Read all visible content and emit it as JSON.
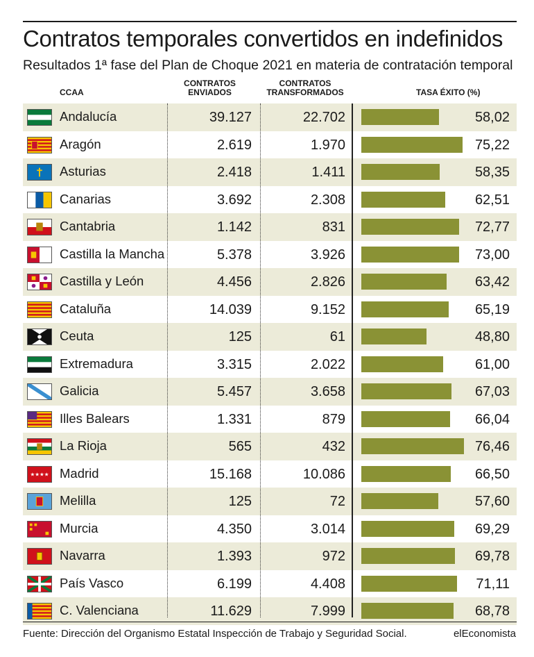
{
  "title": "Contratos temporales convertidos en indefinidos",
  "subtitle": "Resultados 1ª fase del Plan de Choque 2021 en materia de contratación temporal",
  "headers": {
    "ccaa": "CCAA",
    "enviados": "CONTRATOS ENVIADOS",
    "transformados": "CONTRATOS TRANSFORMADOS",
    "tasa": "TASA ÉXITO (%)"
  },
  "colors": {
    "bar": "#8a9235",
    "row_shade": "#ecebd9"
  },
  "chart_data": {
    "type": "table",
    "columns": [
      "CCAA",
      "CONTRATOS ENVIADOS",
      "CONTRATOS TRANSFORMADOS",
      "TASA ÉXITO (%)"
    ],
    "rows": [
      {
        "name": "Andalucía",
        "flag": "andalucia-flag-icon",
        "enviados": "39.127",
        "transformados": "22.702",
        "tasa": "58,02",
        "tasa_value": 58.02
      },
      {
        "name": "Aragón",
        "flag": "aragon-flag-icon",
        "enviados": "2.619",
        "transformados": "1.970",
        "tasa": "75,22",
        "tasa_value": 75.22
      },
      {
        "name": "Asturias",
        "flag": "asturias-flag-icon",
        "enviados": "2.418",
        "transformados": "1.411",
        "tasa": "58,35",
        "tasa_value": 58.35
      },
      {
        "name": "Canarias",
        "flag": "canarias-flag-icon",
        "enviados": "3.692",
        "transformados": "2.308",
        "tasa": "62,51",
        "tasa_value": 62.51
      },
      {
        "name": "Cantabria",
        "flag": "cantabria-flag-icon",
        "enviados": "1.142",
        "transformados": "831",
        "tasa": "72,77",
        "tasa_value": 72.77
      },
      {
        "name": "Castilla la Mancha",
        "flag": "castilla-la-mancha-flag-icon",
        "enviados": "5.378",
        "transformados": "3.926",
        "tasa": "73,00",
        "tasa_value": 73.0
      },
      {
        "name": "Castilla y León",
        "flag": "castilla-y-leon-flag-icon",
        "enviados": "4.456",
        "transformados": "2.826",
        "tasa": "63,42",
        "tasa_value": 63.42
      },
      {
        "name": "Cataluña",
        "flag": "cataluna-flag-icon",
        "enviados": "14.039",
        "transformados": "9.152",
        "tasa": "65,19",
        "tasa_value": 65.19
      },
      {
        "name": "Ceuta",
        "flag": "ceuta-flag-icon",
        "enviados": "125",
        "transformados": "61",
        "tasa": "48,80",
        "tasa_value": 48.8
      },
      {
        "name": "Extremadura",
        "flag": "extremadura-flag-icon",
        "enviados": "3.315",
        "transformados": "2.022",
        "tasa": "61,00",
        "tasa_value": 61.0
      },
      {
        "name": "Galicia",
        "flag": "galicia-flag-icon",
        "enviados": "5.457",
        "transformados": "3.658",
        "tasa": "67,03",
        "tasa_value": 67.03
      },
      {
        "name": "Illes Balears",
        "flag": "illes-balears-flag-icon",
        "enviados": "1.331",
        "transformados": "879",
        "tasa": "66,04",
        "tasa_value": 66.04
      },
      {
        "name": "La Rioja",
        "flag": "la-rioja-flag-icon",
        "enviados": "565",
        "transformados": "432",
        "tasa": "76,46",
        "tasa_value": 76.46
      },
      {
        "name": "Madrid",
        "flag": "madrid-flag-icon",
        "enviados": "15.168",
        "transformados": "10.086",
        "tasa": "66,50",
        "tasa_value": 66.5
      },
      {
        "name": "Melilla",
        "flag": "melilla-flag-icon",
        "enviados": "125",
        "transformados": "72",
        "tasa": "57,60",
        "tasa_value": 57.6
      },
      {
        "name": "Murcia",
        "flag": "murcia-flag-icon",
        "enviados": "4.350",
        "transformados": "3.014",
        "tasa": "69,29",
        "tasa_value": 69.29
      },
      {
        "name": "Navarra",
        "flag": "navarra-flag-icon",
        "enviados": "1.393",
        "transformados": "972",
        "tasa": "69,78",
        "tasa_value": 69.78
      },
      {
        "name": "País Vasco",
        "flag": "pais-vasco-flag-icon",
        "enviados": "6.199",
        "transformados": "4.408",
        "tasa": "71,11",
        "tasa_value": 71.11
      },
      {
        "name": "C. Valenciana",
        "flag": "c-valenciana-flag-icon",
        "enviados": "11.629",
        "transformados": "7.999",
        "tasa": "68,78",
        "tasa_value": 68.78
      }
    ]
  },
  "source": "Fuente: Dirección del Organismo Estatal Inspección de Trabajo y Seguridad Social.",
  "brand": "elEconomista"
}
